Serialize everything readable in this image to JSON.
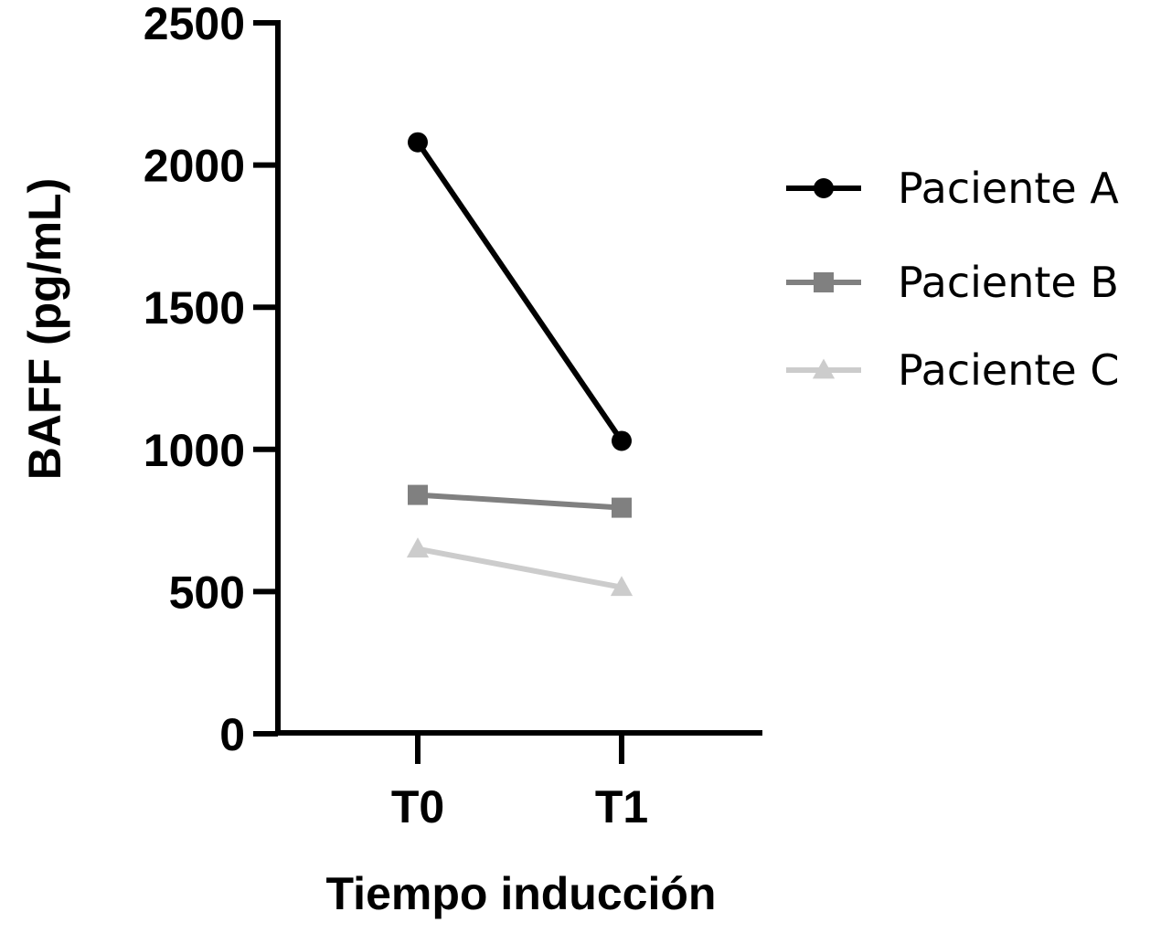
{
  "chart_data": {
    "type": "line",
    "categories": [
      "T0",
      "T1"
    ],
    "xlabel": "Tiempo inducción",
    "ylabel": "BAFF (pg/mL)",
    "ylim": [
      0,
      2500
    ],
    "yticks": [
      0,
      500,
      1000,
      1500,
      2000,
      2500
    ],
    "grid": false,
    "legend": "right",
    "series": [
      {
        "name": "Paciente A",
        "values": [
          2080,
          1030
        ],
        "color": "#000000",
        "marker": "circle"
      },
      {
        "name": "Paciente B",
        "values": [
          840,
          795
        ],
        "color": "#808080",
        "marker": "square"
      },
      {
        "name": "Paciente C",
        "values": [
          650,
          515
        ],
        "color": "#cccccc",
        "marker": "triangle"
      }
    ]
  }
}
